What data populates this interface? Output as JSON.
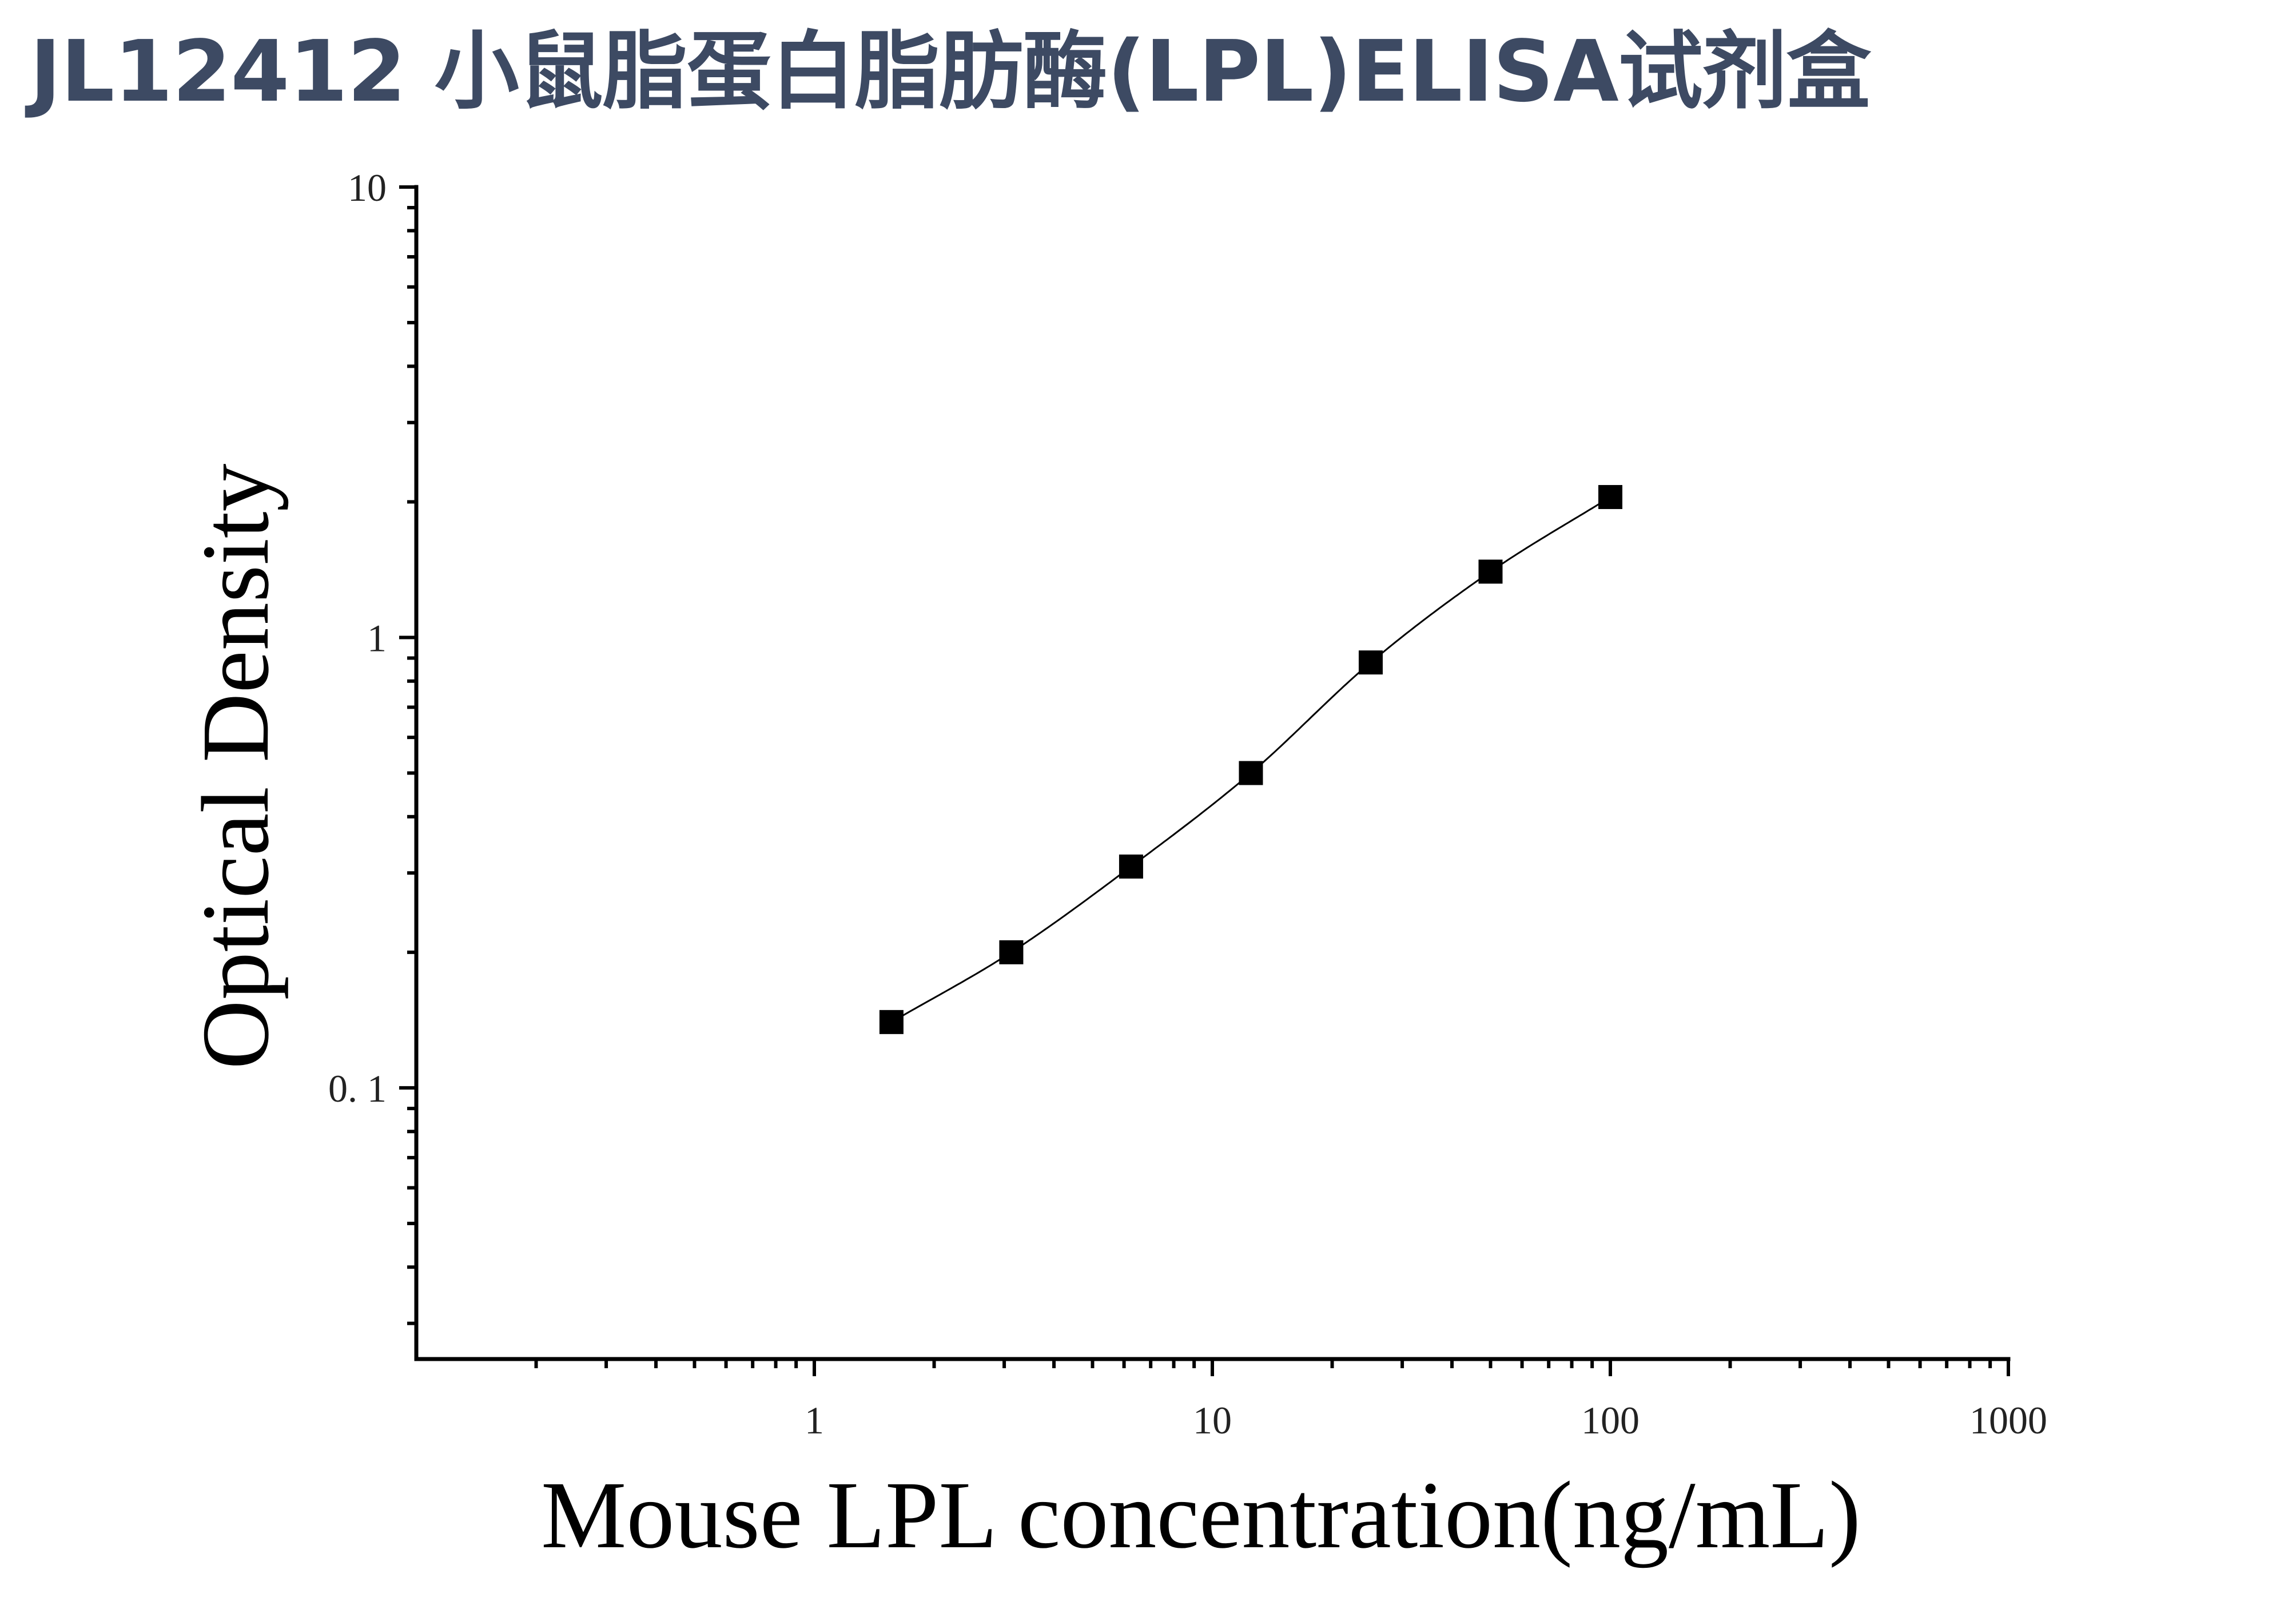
{
  "chart_data": {
    "type": "scatter",
    "title": "JL12412 小鼠脂蛋白脂肪酶(LPL)ELISA试剂盒",
    "xlabel": "Mouse LPL concentration(ng/mL)",
    "ylabel": "Optical Density",
    "xscale": "log",
    "yscale": "log",
    "xlim": [
      0.1,
      1000
    ],
    "ylim": [
      0.025,
      10
    ],
    "x_tick_labels": [
      "1",
      "10",
      "100",
      "1000"
    ],
    "y_tick_labels": [
      "10",
      "1",
      "0. 1"
    ],
    "grid": false,
    "legend": "none",
    "marker": "square",
    "fit_curve": true,
    "colors": {
      "title": "#3d4a63",
      "marker": "#000000",
      "curve": "#000000",
      "axis": "#000000"
    },
    "series": [
      {
        "x": [
          1.5625,
          3.125,
          6.25,
          12.5,
          25,
          50,
          100
        ],
        "y": [
          0.14,
          0.2,
          0.31,
          0.5,
          0.88,
          1.4,
          2.05
        ]
      }
    ]
  }
}
